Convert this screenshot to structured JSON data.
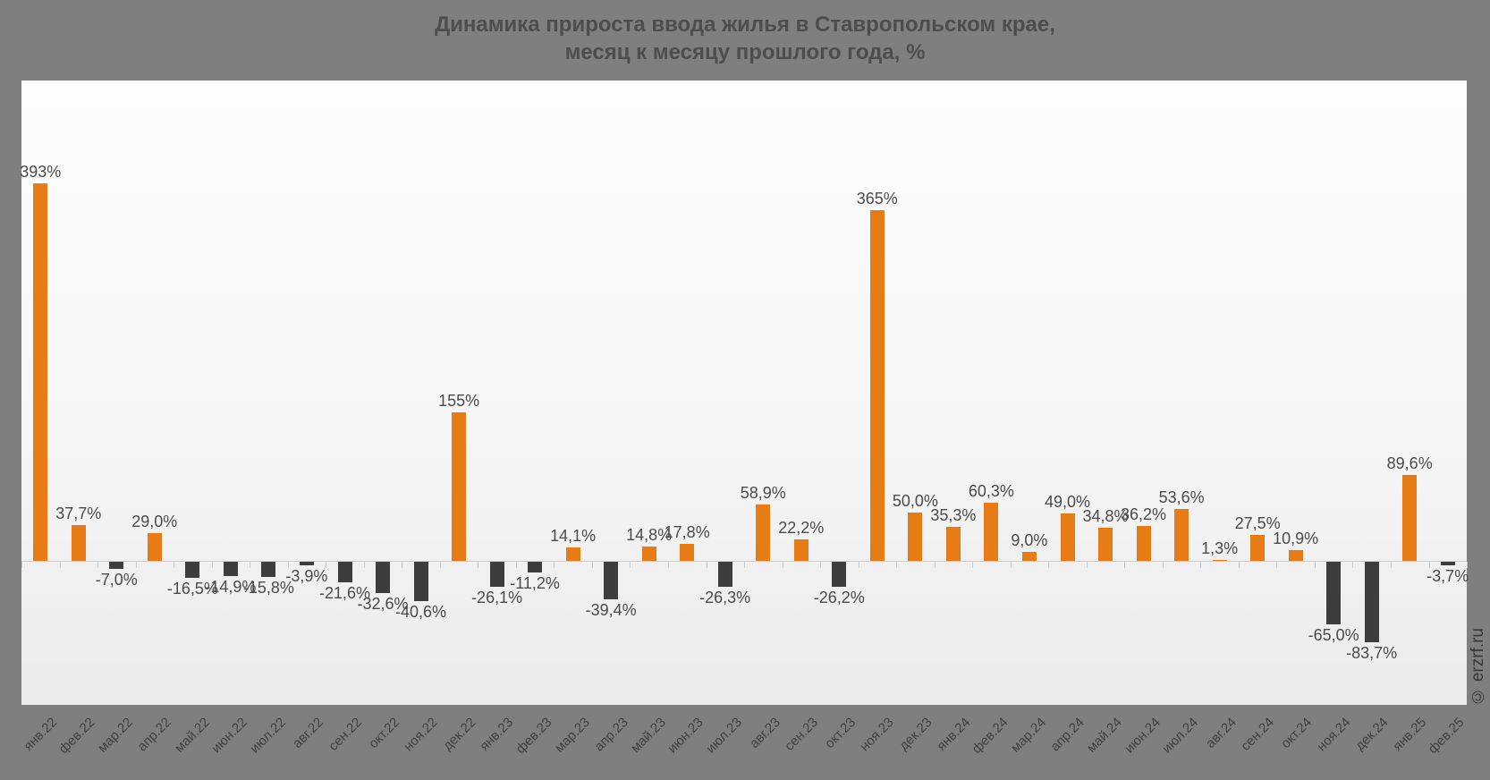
{
  "title": {
    "line1": "Динамика прироста ввода жилья в Ставропольском крае,",
    "line2": "месяц к месяцу прошлого года, %"
  },
  "watermark": "© erzrf.ru",
  "colors": {
    "positive_bar": "#E77C16",
    "negative_bar": "#3D3D3D",
    "background": "#7F7F7F",
    "axis": "#CCCCCC",
    "value_label": "#4A4A4A",
    "tick_label": "#3F3F3F",
    "title": "#4D4D4D"
  },
  "chart_data": {
    "type": "bar",
    "title": "Динамика прироста ввода жилья в Ставропольском крае, месяц к месяцу прошлого года, %",
    "xlabel": "",
    "ylabel": "",
    "ylim": [
      -150,
      500
    ],
    "grid": false,
    "legend": false,
    "categories": [
      "янв.22",
      "фев.22",
      "мар.22",
      "апр.22",
      "май.22",
      "июн.22",
      "июл.22",
      "авг.22",
      "сен.22",
      "окт.22",
      "ноя.22",
      "дек.22",
      "янв.23",
      "фев.23",
      "мар.23",
      "апр.23",
      "май.23",
      "июн.23",
      "июл.23",
      "авг.23",
      "сен.23",
      "окт.23",
      "ноя.23",
      "дек.23",
      "янв.24",
      "фев.24",
      "мар.24",
      "апр.24",
      "май.24",
      "июн.24",
      "июл.24",
      "авг.24",
      "сен.24",
      "окт.24",
      "ноя.24",
      "дек.24",
      "янв.25",
      "фев.25"
    ],
    "values": [
      393,
      37.7,
      -7.0,
      29.0,
      -16.5,
      -14.9,
      -15.8,
      -3.9,
      -21.6,
      -32.6,
      -40.6,
      155,
      -26.1,
      -11.2,
      14.1,
      -39.4,
      14.8,
      17.8,
      -26.3,
      58.9,
      22.2,
      -26.2,
      365,
      50.0,
      35.3,
      60.3,
      9.0,
      49.0,
      34.8,
      36.2,
      53.6,
      1.3,
      27.5,
      10.9,
      -65.0,
      -83.7,
      89.6,
      -3.7
    ],
    "value_labels": [
      "393%",
      "37,7%",
      "-7,0%",
      "29,0%",
      "-16,5%",
      "-14,9%",
      "-15,8%",
      "-3,9%",
      "-21,6%",
      "-32,6%",
      "-40,6%",
      "155%",
      "-26,1%",
      "-11,2%",
      "14,1%",
      "-39,4%",
      "14,8%",
      "17,8%",
      "-26,3%",
      "58,9%",
      "22,2%",
      "-26,2%",
      "365%",
      "50,0%",
      "35,3%",
      "60,3%",
      "9,0%",
      "49,0%",
      "34,8%",
      "36,2%",
      "53,6%",
      "1,3%",
      "27,5%",
      "10,9%",
      "-65,0%",
      "-83,7%",
      "89,6%",
      "-3,7%"
    ]
  }
}
